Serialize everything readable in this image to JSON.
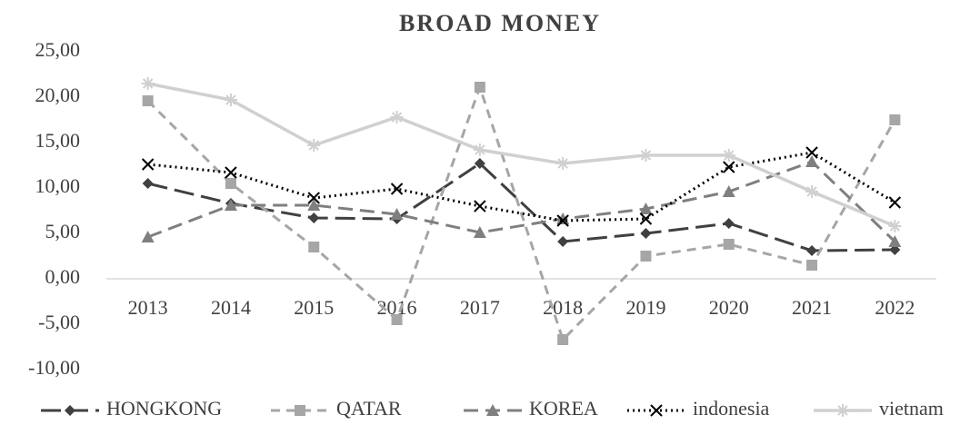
{
  "chart_data": {
    "type": "line",
    "title": "BROAD MONEY",
    "categories": [
      "2013",
      "2014",
      "2015",
      "2016",
      "2017",
      "2018",
      "2019",
      "2020",
      "2021",
      "2022"
    ],
    "series": [
      {
        "name": "HONGKONG",
        "color": "#404040",
        "values": [
          10.5,
          8.3,
          6.7,
          6.6,
          12.7,
          4.1,
          5.0,
          6.1,
          3.1,
          3.2
        ]
      },
      {
        "name": "QATAR",
        "color": "#a6a6a6",
        "values": [
          19.6,
          10.5,
          3.5,
          -4.5,
          21.1,
          -6.7,
          2.5,
          3.8,
          1.5,
          17.5
        ]
      },
      {
        "name": "KOREA",
        "color": "#7f7f7f",
        "values": [
          4.6,
          8.1,
          8.1,
          7.1,
          5.1,
          6.6,
          7.7,
          9.6,
          12.9,
          4.1
        ]
      },
      {
        "name": "indonesia",
        "color": "#000000",
        "values": [
          12.6,
          11.7,
          8.9,
          9.9,
          8.0,
          6.4,
          6.6,
          12.3,
          13.9,
          8.4
        ]
      },
      {
        "name": "vietnam",
        "color": "#d0d0d0",
        "values": [
          21.5,
          19.7,
          14.7,
          17.8,
          14.2,
          12.7,
          13.6,
          13.6,
          9.6,
          5.8
        ]
      }
    ],
    "ylim": [
      -10,
      25
    ],
    "yticks": [
      {
        "value": -10,
        "label": "-10,00"
      },
      {
        "value": -5,
        "label": "-5,00"
      },
      {
        "value": 0,
        "label": "0,00"
      },
      {
        "value": 5,
        "label": "5,00"
      },
      {
        "value": 10,
        "label": "10,00"
      },
      {
        "value": 15,
        "label": "15,00"
      },
      {
        "value": 20,
        "label": "20,00"
      },
      {
        "value": 25,
        "label": "25,00"
      }
    ],
    "grid": false,
    "legend": "bottom"
  }
}
